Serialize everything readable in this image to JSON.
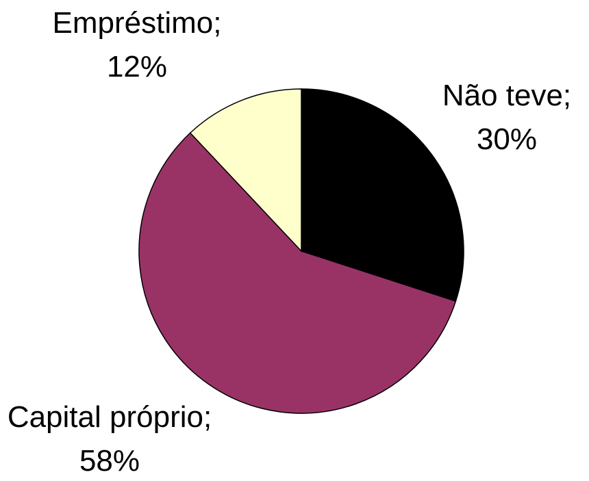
{
  "chart_data": {
    "type": "pie",
    "categories": [
      "Não teve;",
      "Capital próprio;",
      "Empréstimo;"
    ],
    "values": [
      30,
      58,
      12
    ],
    "value_labels": [
      "30%",
      "58%",
      "12%"
    ],
    "colors": [
      "#000000",
      "#993366",
      "#ffffcc"
    ]
  }
}
